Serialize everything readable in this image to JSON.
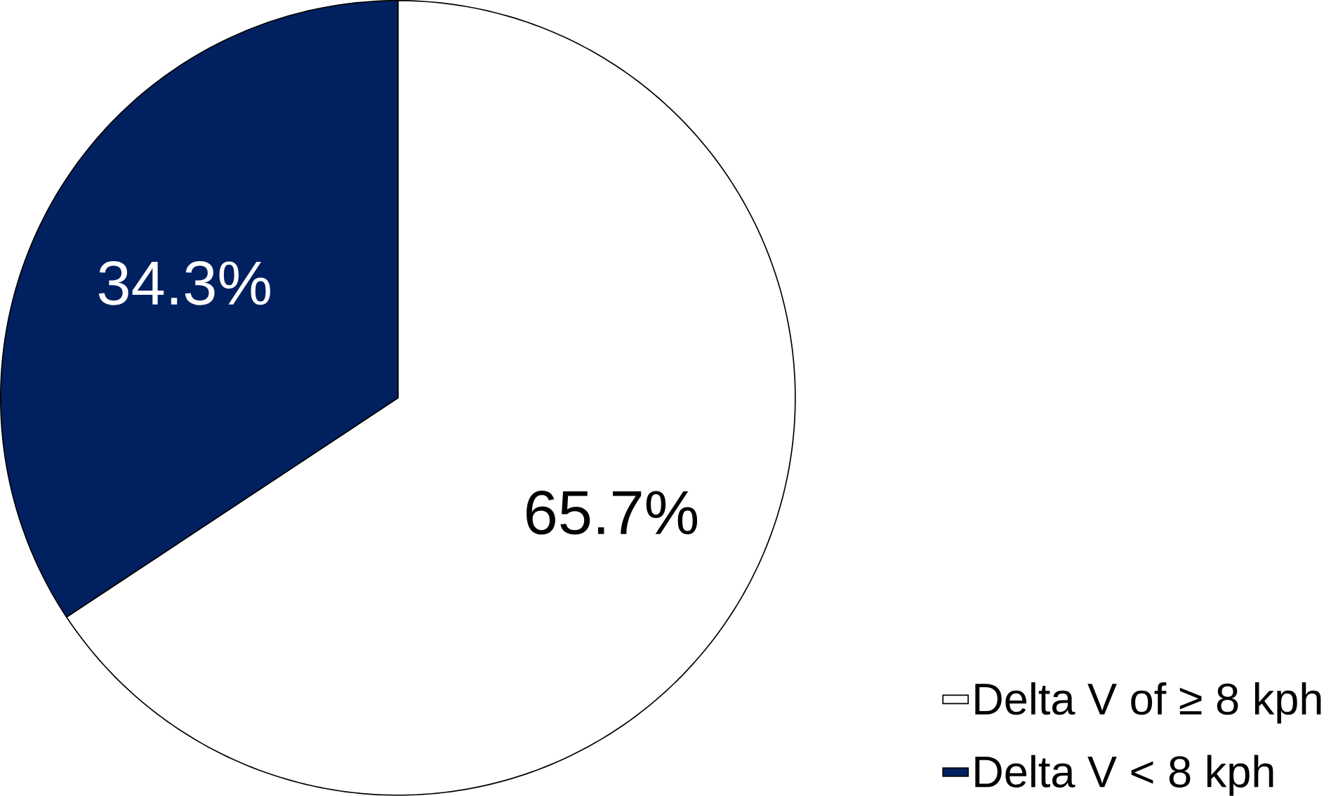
{
  "chart_data": {
    "type": "pie",
    "categories": [
      "Delta V of ≥ 8 kph",
      "Delta V < 8 kph"
    ],
    "values": [
      65.7,
      34.3
    ],
    "colors": [
      "#ffffff",
      "#002060"
    ],
    "value_labels": [
      "65.7%",
      "34.3%"
    ],
    "legend": "bottom right"
  }
}
